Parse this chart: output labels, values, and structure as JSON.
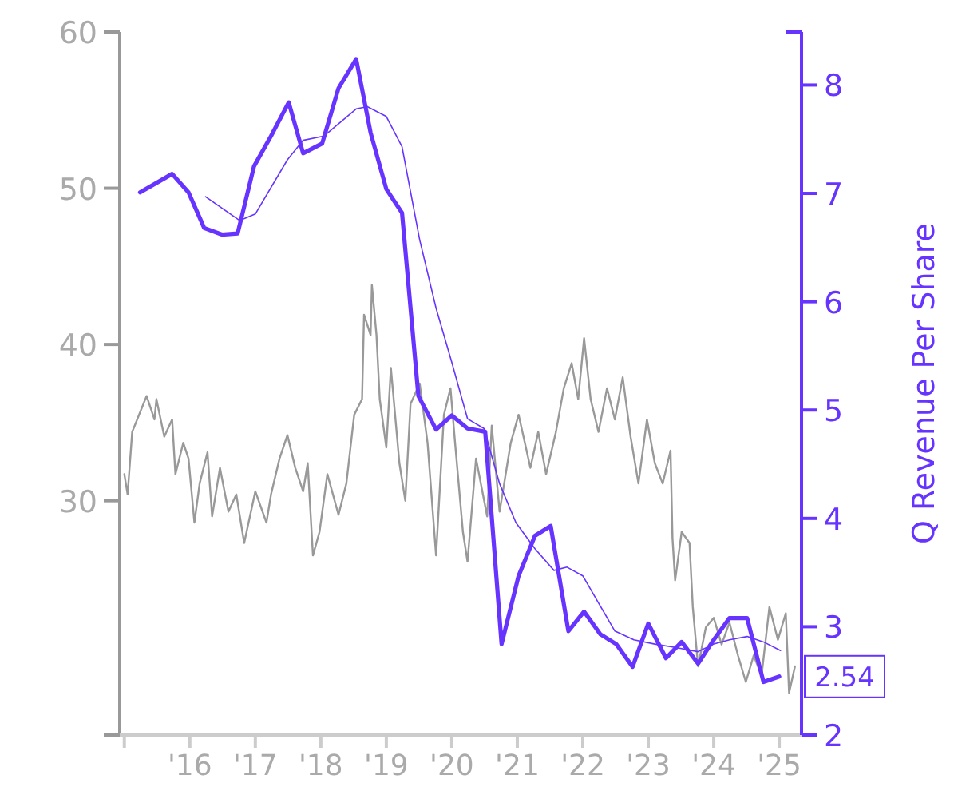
{
  "chart_data": {
    "type": "line",
    "y2label": "Q Revenue Per Share",
    "xlim": [
      2014.93,
      2025.34
    ],
    "xticks": [
      {
        "value": 2015,
        "label": null
      },
      {
        "value": 2016,
        "label": "'16"
      },
      {
        "value": 2017,
        "label": "'17"
      },
      {
        "value": 2018,
        "label": "'18"
      },
      {
        "value": 2019,
        "label": "'19"
      },
      {
        "value": 2020,
        "label": "'20"
      },
      {
        "value": 2021,
        "label": "'21"
      },
      {
        "value": 2022,
        "label": "'22"
      },
      {
        "value": 2023,
        "label": "'23"
      },
      {
        "value": 2024,
        "label": "'24"
      },
      {
        "value": 2025,
        "label": "'25"
      }
    ],
    "ylim": [
      15,
      60
    ],
    "yticks": [
      30,
      40,
      50,
      60
    ],
    "y2lim": [
      2,
      8.49
    ],
    "y2ticks": [
      2,
      3,
      4,
      5,
      6,
      7,
      8
    ],
    "series": [
      {
        "color": "#999999",
        "x": [
          2015.0,
          2015.05,
          2015.12,
          2015.34,
          2015.46,
          2015.49,
          2015.61,
          2015.73,
          2015.78,
          2015.9,
          2015.98,
          2016.07,
          2016.15,
          2016.27,
          2016.34,
          2016.46,
          2016.59,
          2016.71,
          2016.83,
          2017.0,
          2017.17,
          2017.24,
          2017.37,
          2017.49,
          2017.61,
          2017.73,
          2017.8,
          2017.88,
          2017.98,
          2018.1,
          2018.27,
          2018.39,
          2018.51,
          2018.63,
          2018.66,
          2018.76,
          2018.78,
          2018.85,
          2018.9,
          2019.0,
          2019.07,
          2019.2,
          2019.29,
          2019.37,
          2019.51,
          2019.63,
          2019.76,
          2019.88,
          2019.98,
          2020.05,
          2020.17,
          2020.24,
          2020.37,
          2020.54,
          2020.61,
          2020.73,
          2020.9,
          2021.02,
          2021.2,
          2021.32,
          2021.44,
          2021.59,
          2021.71,
          2021.83,
          2021.93,
          2022.02,
          2022.12,
          2022.24,
          2022.37,
          2022.49,
          2022.61,
          2022.73,
          2022.85,
          2022.98,
          2023.1,
          2023.22,
          2023.34,
          2023.37,
          2023.41,
          2023.51,
          2023.63,
          2023.68,
          2023.76,
          2023.88,
          2024.0,
          2024.12,
          2024.24,
          2024.37,
          2024.49,
          2024.61,
          2024.73,
          2024.85,
          2024.98,
          2025.1,
          2025.15,
          2025.24
        ],
        "values": [
          31.7,
          30.4,
          34.4,
          36.7,
          35.2,
          36.5,
          34.1,
          35.2,
          31.7,
          33.7,
          32.7,
          28.6,
          31.1,
          33.1,
          29.0,
          32.1,
          29.3,
          30.4,
          27.3,
          30.6,
          28.6,
          30.4,
          32.7,
          34.2,
          32.1,
          30.6,
          32.4,
          26.5,
          28.0,
          31.7,
          29.1,
          31.1,
          35.5,
          36.5,
          41.9,
          40.6,
          43.8,
          40.6,
          36.5,
          33.4,
          38.5,
          32.4,
          30.0,
          36.2,
          37.5,
          33.7,
          26.5,
          35.5,
          37.2,
          33.7,
          28.0,
          26.1,
          32.7,
          29.0,
          34.8,
          29.3,
          33.7,
          35.5,
          32.1,
          34.4,
          31.7,
          34.4,
          37.2,
          38.8,
          36.5,
          40.4,
          36.5,
          34.4,
          37.2,
          35.2,
          37.9,
          34.1,
          31.1,
          35.2,
          32.4,
          31.1,
          33.2,
          27.6,
          24.9,
          28.0,
          27.3,
          23.2,
          19.4,
          21.9,
          22.5,
          20.8,
          22.2,
          20.1,
          18.4,
          20.1,
          18.8,
          23.2,
          21.1,
          22.8,
          17.7,
          19.4
        ]
      },
      {
        "color": "#6633ff",
        "axis": "y2",
        "x": [
          2015.24,
          2015.73,
          2015.98,
          2016.22,
          2016.49,
          2016.73,
          2016.98,
          2017.24,
          2017.51,
          2017.73,
          2018.02,
          2018.27,
          2018.54,
          2018.76,
          2019.0,
          2019.24,
          2019.49,
          2019.76,
          2020.0,
          2020.24,
          2020.51,
          2020.76,
          2021.02,
          2021.27,
          2021.51,
          2021.78,
          2022.02,
          2022.27,
          2022.51,
          2022.76,
          2023.0,
          2023.27,
          2023.51,
          2023.76,
          2024.0,
          2024.24,
          2024.51,
          2024.76,
          2025.0
        ],
        "values": [
          7.01,
          7.18,
          7.01,
          6.68,
          6.62,
          6.63,
          7.25,
          7.53,
          7.84,
          7.37,
          7.46,
          7.97,
          8.24,
          7.56,
          7.04,
          6.82,
          5.13,
          4.82,
          4.95,
          4.83,
          4.8,
          2.84,
          3.47,
          3.84,
          3.93,
          2.96,
          3.14,
          2.93,
          2.84,
          2.63,
          3.03,
          2.71,
          2.86,
          2.66,
          2.88,
          3.08,
          3.08,
          2.49,
          2.54
        ],
        "value_labels": [
          null,
          null,
          null,
          null,
          null,
          null,
          null,
          null,
          null,
          null,
          null,
          null,
          null,
          null,
          null,
          null,
          null,
          null,
          null,
          null,
          null,
          null,
          null,
          null,
          null,
          null,
          null,
          null,
          null,
          null,
          null,
          null,
          null,
          null,
          null,
          null,
          null,
          null,
          "2.54"
        ]
      },
      {
        "color": "#6633ff",
        "axis": "y2",
        "x": [
          2016.24,
          2016.76,
          2017.0,
          2017.49,
          2017.73,
          2018.05,
          2018.54,
          2018.71,
          2019.0,
          2019.24,
          2019.51,
          2019.76,
          2020.0,
          2020.24,
          2020.49,
          2020.73,
          2020.98,
          2021.27,
          2021.56,
          2021.76,
          2022.0,
          2022.24,
          2022.49,
          2022.78,
          2023.1,
          2023.41,
          2023.76,
          2024.0,
          2024.24,
          2024.51,
          2024.76,
          2025.02
        ],
        "values": [
          6.97,
          6.75,
          6.81,
          7.31,
          7.49,
          7.53,
          7.78,
          7.8,
          7.71,
          7.43,
          6.57,
          5.94,
          5.44,
          4.92,
          4.83,
          4.32,
          3.96,
          3.72,
          3.52,
          3.55,
          3.47,
          3.22,
          2.96,
          2.88,
          2.84,
          2.81,
          2.77,
          2.84,
          2.88,
          2.91,
          2.86,
          2.78
        ]
      }
    ]
  }
}
